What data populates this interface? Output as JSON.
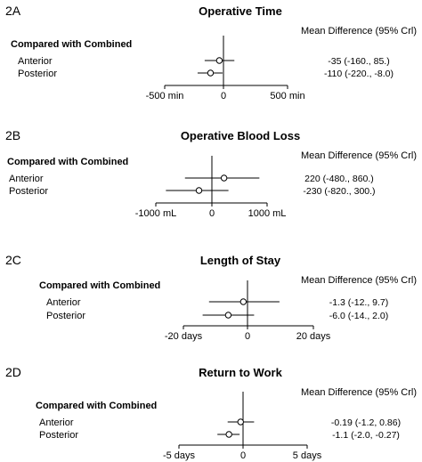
{
  "panels": [
    {
      "label": "2A",
      "title": "Operative Time",
      "column_header": "Mean Difference (95% Crl)",
      "group_label": "Compared with Combined",
      "rows": [
        {
          "name": "Anterior",
          "ci_text": "-35 (-160., 85.)"
        },
        {
          "name": "Posterior",
          "ci_text": "-110 (-220., -8.0)"
        }
      ],
      "ticks": [
        "-500 min",
        "0",
        "500 min"
      ]
    },
    {
      "label": "2B",
      "title": "Operative Blood Loss",
      "column_header": "Mean Difference (95% Crl)",
      "group_label": "Compared with Combined",
      "rows": [
        {
          "name": "Anterior",
          "ci_text": "220 (-480., 860.)"
        },
        {
          "name": "Posterior",
          "ci_text": "-230 (-820., 300.)"
        }
      ],
      "ticks": [
        "-1000 mL",
        "0",
        "1000 mL"
      ]
    },
    {
      "label": "2C",
      "title": "Length of Stay",
      "column_header": "Mean Difference (95% Crl)",
      "group_label": "Compared with Combined",
      "rows": [
        {
          "name": "Anterior",
          "ci_text": "-1.3 (-12., 9.7)"
        },
        {
          "name": "Posterior",
          "ci_text": "-6.0 (-14., 2.0)"
        }
      ],
      "ticks": [
        "-20 days",
        "0",
        "20 days"
      ]
    },
    {
      "label": "2D",
      "title": "Return to Work",
      "column_header": "Mean Difference (95% Crl)",
      "group_label": "Compared with Combined",
      "rows": [
        {
          "name": "Anterior",
          "ci_text": "-0.19 (-1.2, 0.86)"
        },
        {
          "name": "Posterior",
          "ci_text": "-1.1 (-2.0, -0.27)"
        }
      ],
      "ticks": [
        "-5 days",
        "0",
        "5 days"
      ]
    }
  ],
  "chart_data": [
    {
      "type": "forest",
      "title": "Operative Time",
      "categories": [
        "Anterior",
        "Posterior"
      ],
      "values": [
        -35,
        -110
      ],
      "ci_lower": [
        -160,
        -220
      ],
      "ci_upper": [
        85,
        -8.0
      ],
      "xlim": [
        -500,
        500
      ],
      "x_ticks": [
        -500,
        0,
        500
      ],
      "reference_line": 0
    },
    {
      "type": "forest",
      "title": "Operative Blood Loss",
      "categories": [
        "Anterior",
        "Posterior"
      ],
      "values": [
        220,
        -230
      ],
      "ci_lower": [
        -480,
        -820
      ],
      "ci_upper": [
        860,
        300
      ],
      "xlim": [
        -1000,
        1000
      ],
      "x_ticks": [
        -1000,
        0,
        1000
      ],
      "reference_line": 0
    },
    {
      "type": "forest",
      "title": "Length of Stay",
      "categories": [
        "Anterior",
        "Posterior"
      ],
      "values": [
        -1.3,
        -6.0
      ],
      "ci_lower": [
        -12,
        -14
      ],
      "ci_upper": [
        9.7,
        2.0
      ],
      "xlim": [
        -20,
        20
      ],
      "x_ticks": [
        -20,
        0,
        20
      ],
      "reference_line": 0
    },
    {
      "type": "forest",
      "title": "Return to Work",
      "categories": [
        "Anterior",
        "Posterior"
      ],
      "values": [
        -0.19,
        -1.1
      ],
      "ci_lower": [
        -1.2,
        -2.0
      ],
      "ci_upper": [
        0.86,
        -0.27
      ],
      "xlim": [
        -5,
        5
      ],
      "x_ticks": [
        -5,
        0,
        5
      ],
      "reference_line": 0
    }
  ]
}
